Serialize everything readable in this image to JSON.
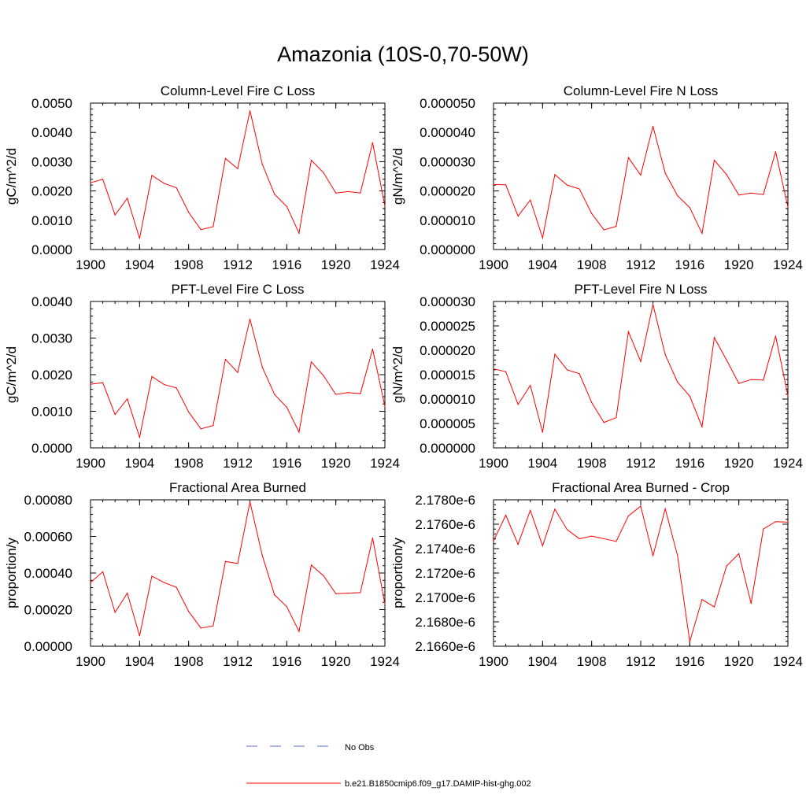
{
  "title": "Amazonia (10S-0,70-50W)",
  "colors": {
    "model_line": "#ff0000",
    "obs_line": "#5a6cc4",
    "axis": "#000000"
  },
  "legend": {
    "obs_label": "No Obs",
    "model_label": "b.e21.B1850cmip6.f09_g17.DAMIP-hist-ghg.002"
  },
  "chart_data": [
    {
      "type": "line",
      "title": "Column-Level Fire C Loss",
      "xlabel": "",
      "ylabel": "gC/m^2/d",
      "xlim": [
        1900,
        1924
      ],
      "ylim": [
        0,
        0.005
      ],
      "xticks": [
        1900,
        1904,
        1908,
        1912,
        1916,
        1920,
        1924
      ],
      "xticklabels": [
        "1900",
        "1904",
        "1908",
        "1912",
        "1916",
        "1920",
        "1924"
      ],
      "yticks": [
        0,
        0.001,
        0.002,
        0.003,
        0.004,
        0.005
      ],
      "yticklabels": [
        "0.0000",
        "0.0010",
        "0.0020",
        "0.0030",
        "0.0040",
        "0.0050"
      ],
      "x": [
        1900,
        1901,
        1902,
        1903,
        1904,
        1905,
        1906,
        1907,
        1908,
        1909,
        1910,
        1911,
        1912,
        1913,
        1914,
        1915,
        1916,
        1917,
        1918,
        1919,
        1920,
        1921,
        1922,
        1923,
        1924
      ],
      "y": [
        0.00228,
        0.0024,
        0.00118,
        0.00175,
        0.00038,
        0.00253,
        0.00226,
        0.00211,
        0.00127,
        0.00068,
        0.00078,
        0.00311,
        0.00276,
        0.00474,
        0.00292,
        0.00189,
        0.00147,
        0.00056,
        0.00305,
        0.00262,
        0.00193,
        0.00198,
        0.00193,
        0.00365,
        0.00148
      ]
    },
    {
      "type": "line",
      "title": "Column-Level Fire N Loss",
      "xlabel": "",
      "ylabel": "gN/m^2/d",
      "xlim": [
        1900,
        1924
      ],
      "ylim": [
        0,
        5e-05
      ],
      "xticks": [
        1900,
        1904,
        1908,
        1912,
        1916,
        1920,
        1924
      ],
      "xticklabels": [
        "1900",
        "1904",
        "1908",
        "1912",
        "1916",
        "1920",
        "1924"
      ],
      "yticks": [
        0,
        1e-05,
        2e-05,
        3e-05,
        4e-05,
        5e-05
      ],
      "yticklabels": [
        "0.000000",
        "0.000010",
        "0.000020",
        "0.000030",
        "0.000040",
        "0.000050"
      ],
      "x": [
        1900,
        1901,
        1902,
        1903,
        1904,
        1905,
        1906,
        1907,
        1908,
        1909,
        1910,
        1911,
        1912,
        1913,
        1914,
        1915,
        1916,
        1917,
        1918,
        1919,
        1920,
        1921,
        1922,
        1923,
        1924
      ],
      "y": [
        2.22e-05,
        2.21e-05,
        1.14e-05,
        1.69e-05,
        4e-06,
        2.56e-05,
        2.2e-05,
        2.07e-05,
        1.23e-05,
        6.7e-06,
        7.9e-06,
        3.14e-05,
        2.54e-05,
        4.21e-05,
        2.61e-05,
        1.84e-05,
        1.43e-05,
        5.5e-06,
        3.05e-05,
        2.56e-05,
        1.86e-05,
        1.93e-05,
        1.88e-05,
        3.34e-05,
        1.45e-05
      ]
    },
    {
      "type": "line",
      "title": "PFT-Level Fire C Loss",
      "xlabel": "",
      "ylabel": "gC/m^2/d",
      "xlim": [
        1900,
        1924
      ],
      "ylim": [
        0,
        0.004
      ],
      "xticks": [
        1900,
        1904,
        1908,
        1912,
        1916,
        1920,
        1924
      ],
      "xticklabels": [
        "1900",
        "1904",
        "1908",
        "1912",
        "1916",
        "1920",
        "1924"
      ],
      "yticks": [
        0,
        0.001,
        0.002,
        0.003,
        0.004
      ],
      "yticklabels": [
        "0.0000",
        "0.0010",
        "0.0020",
        "0.0030",
        "0.0040"
      ],
      "x": [
        1900,
        1901,
        1902,
        1903,
        1904,
        1905,
        1906,
        1907,
        1908,
        1909,
        1910,
        1911,
        1912,
        1913,
        1914,
        1915,
        1916,
        1917,
        1918,
        1919,
        1920,
        1921,
        1922,
        1923,
        1924
      ],
      "y": [
        0.00174,
        0.00178,
        0.00091,
        0.00134,
        0.00029,
        0.00195,
        0.00173,
        0.00164,
        0.00098,
        0.00052,
        0.00061,
        0.00242,
        0.00206,
        0.00352,
        0.00221,
        0.00146,
        0.00111,
        0.00043,
        0.00235,
        0.00197,
        0.00146,
        0.00151,
        0.00148,
        0.0027,
        0.00113
      ]
    },
    {
      "type": "line",
      "title": "PFT-Level Fire N Loss",
      "xlabel": "",
      "ylabel": "gN/m^2/d",
      "xlim": [
        1900,
        1924
      ],
      "ylim": [
        0,
        3e-05
      ],
      "xticks": [
        1900,
        1904,
        1908,
        1912,
        1916,
        1920,
        1924
      ],
      "xticklabels": [
        "1900",
        "1904",
        "1908",
        "1912",
        "1916",
        "1920",
        "1924"
      ],
      "yticks": [
        0,
        5e-06,
        1e-05,
        1.5e-05,
        2e-05,
        2.5e-05,
        3e-05
      ],
      "yticklabels": [
        "0.000000",
        "0.000005",
        "0.000010",
        "0.000015",
        "0.000020",
        "0.000025",
        "0.000030"
      ],
      "x": [
        1900,
        1901,
        1902,
        1903,
        1904,
        1905,
        1906,
        1907,
        1908,
        1909,
        1910,
        1911,
        1912,
        1913,
        1914,
        1915,
        1916,
        1917,
        1918,
        1919,
        1920,
        1921,
        1922,
        1923,
        1924
      ],
      "y": [
        1.62e-05,
        1.56e-05,
        8.9e-06,
        1.28e-05,
        3.2e-06,
        1.92e-05,
        1.6e-05,
        1.52e-05,
        9.3e-06,
        5.2e-06,
        6.2e-06,
        2.38e-05,
        1.77e-05,
        2.94e-05,
        1.91e-05,
        1.35e-05,
        1.06e-05,
        4.3e-06,
        2.26e-05,
        1.8e-05,
        1.32e-05,
        1.4e-05,
        1.39e-05,
        2.29e-05,
        1.07e-05
      ]
    },
    {
      "type": "line",
      "title": "Fractional Area Burned",
      "xlabel": "",
      "ylabel": "proportion/y",
      "xlim": [
        1900,
        1924
      ],
      "ylim": [
        0,
        0.0008
      ],
      "xticks": [
        1900,
        1904,
        1908,
        1912,
        1916,
        1920,
        1924
      ],
      "xticklabels": [
        "1900",
        "1904",
        "1908",
        "1912",
        "1916",
        "1920",
        "1924"
      ],
      "yticks": [
        0,
        0.0002,
        0.0004,
        0.0006,
        0.0008
      ],
      "yticklabels": [
        "0.00000",
        "0.00020",
        "0.00040",
        "0.00060",
        "0.00080"
      ],
      "x": [
        1900,
        1901,
        1902,
        1903,
        1904,
        1905,
        1906,
        1907,
        1908,
        1909,
        1910,
        1911,
        1912,
        1913,
        1914,
        1915,
        1916,
        1917,
        1918,
        1919,
        1920,
        1921,
        1922,
        1923,
        1924
      ],
      "y": [
        0.000348,
        0.000407,
        0.000185,
        0.00029,
        5.7e-05,
        0.000383,
        0.000348,
        0.000322,
        0.00019,
        9.9e-05,
        0.000111,
        0.000463,
        0.000452,
        0.000789,
        0.000497,
        0.000281,
        0.000216,
        8.1e-05,
        0.000443,
        0.000385,
        0.000287,
        0.00029,
        0.000293,
        0.000591,
        0.00023
      ]
    },
    {
      "type": "line",
      "title": "Fractional Area Burned - Crop",
      "xlabel": "",
      "ylabel": "proportion/y",
      "xlim": [
        1900,
        1924
      ],
      "ylim": [
        2.166e-06,
        2.178e-06
      ],
      "xticks": [
        1900,
        1904,
        1908,
        1912,
        1916,
        1920,
        1924
      ],
      "xticklabels": [
        "1900",
        "1904",
        "1908",
        "1912",
        "1916",
        "1920",
        "1924"
      ],
      "yticks": [
        2.166e-06,
        2.168e-06,
        2.17e-06,
        2.172e-06,
        2.174e-06,
        2.176e-06,
        2.178e-06
      ],
      "yticklabels": [
        "2.1660e-6",
        "2.1680e-6",
        "2.1700e-6",
        "2.1720e-6",
        "2.1740e-6",
        "2.1760e-6",
        "2.1780e-6"
      ],
      "x": [
        1900,
        1901,
        1902,
        1903,
        1904,
        1905,
        1906,
        1907,
        1908,
        1909,
        1910,
        1911,
        1912,
        1913,
        1914,
        1915,
        1916,
        1917,
        1918,
        1919,
        1920,
        1921,
        1922,
        1923,
        1924
      ],
      "y": [
        2.17463e-06,
        2.17674e-06,
        2.17435e-06,
        2.17714e-06,
        2.17423e-06,
        2.17724e-06,
        2.17556e-06,
        2.17481e-06,
        2.17502e-06,
        2.17481e-06,
        2.17459e-06,
        2.17668e-06,
        2.17748e-06,
        2.17341e-06,
        2.17726e-06,
        2.17344e-06,
        2.16638e-06,
        2.16983e-06,
        2.16922e-06,
        2.17257e-06,
        2.17358e-06,
        2.16951e-06,
        2.17561e-06,
        2.17621e-06,
        2.17617e-06
      ]
    }
  ]
}
